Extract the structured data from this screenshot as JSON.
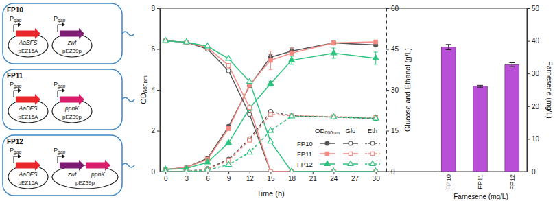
{
  "diagram": {
    "strains": [
      {
        "name": "FP10",
        "plasmids": [
          {
            "name": "pEZ15A",
            "promoter": {
              "text": "P",
              "subscript": "gap"
            },
            "genes": [
              {
                "name": "AaBFS",
                "color": "#e8262b"
              }
            ]
          },
          {
            "name": "pEZ39p",
            "promoter": {
              "text": "P",
              "subscript": "gap"
            },
            "genes": [
              {
                "name": "zwf",
                "color": "#7d1a72"
              }
            ]
          }
        ]
      },
      {
        "name": "FP11",
        "plasmids": [
          {
            "name": "pEZ15A",
            "promoter": {
              "text": "P",
              "subscript": "gap"
            },
            "genes": [
              {
                "name": "AaBFS",
                "color": "#e8262b"
              }
            ]
          },
          {
            "name": "pEZ39p",
            "promoter": {
              "text": "P",
              "subscript": "gap"
            },
            "genes": [
              {
                "name": "ppnK",
                "color": "#d81e6a"
              }
            ]
          }
        ]
      },
      {
        "name": "FP12",
        "plasmids": [
          {
            "name": "pEZ15A",
            "promoter": {
              "text": "P",
              "subscript": "gap"
            },
            "genes": [
              {
                "name": "AaBFS",
                "color": "#e8262b"
              }
            ]
          },
          {
            "name": "pEZ39p",
            "promoter": {
              "text": "P",
              "subscript": "gap"
            },
            "genes": [
              {
                "name": "zwf",
                "color": "#7d1a72"
              },
              {
                "name": "ppnK",
                "color": "#d81e6a"
              }
            ]
          }
        ]
      }
    ]
  },
  "chart_data": [
    {
      "type": "line",
      "xlabel": "Time (h)",
      "ylabel": {
        "text": "OD",
        "subscript": "600nm"
      },
      "y2label": "Glucose and Ethanol (g/L)",
      "x": [
        0,
        3,
        6,
        9,
        12,
        15,
        18,
        24,
        30
      ],
      "xlim": [
        -0.8,
        31.5
      ],
      "xticks": [
        0,
        3,
        6,
        9,
        12,
        15,
        18,
        21,
        24,
        27,
        30
      ],
      "ylim": [
        0,
        8
      ],
      "yticks": [
        0,
        2,
        4,
        6,
        8
      ],
      "y2lim": [
        0,
        60
      ],
      "y2ticks": [
        0,
        15,
        30,
        45,
        60
      ],
      "legend": "lower right",
      "legend_columns": [
        {
          "text": "OD",
          "subscript": "600nm"
        },
        {
          "text": "Glu"
        },
        {
          "text": "Eth"
        }
      ],
      "series": [
        {
          "name": "FP10",
          "measure": "OD",
          "color": "#555555",
          "marker": "circle",
          "line_style": "solid",
          "values": [
            0.1,
            0.2,
            0.65,
            2.2,
            4.2,
            5.6,
            5.9,
            6.3,
            6.2
          ],
          "errors": [
            null,
            null,
            null,
            0.08,
            0.1,
            0.12,
            0.15,
            0.08,
            0.08
          ]
        },
        {
          "name": "FP11",
          "measure": "OD",
          "color": "#f28b82",
          "marker": "square",
          "line_style": "solid",
          "values": [
            0.1,
            0.2,
            0.6,
            2.1,
            4.25,
            5.45,
            5.8,
            6.3,
            6.35
          ],
          "errors": [
            null,
            null,
            null,
            0.1,
            0.15,
            0.45,
            0.25,
            0.1,
            0.08
          ]
        },
        {
          "name": "FP12",
          "measure": "OD",
          "color": "#2bc37f",
          "marker": "triangle",
          "line_style": "solid",
          "values": [
            0.1,
            0.15,
            0.45,
            1.4,
            3.1,
            4.3,
            5.45,
            5.8,
            5.55
          ],
          "errors": [
            null,
            null,
            0.05,
            0.1,
            0.12,
            0.12,
            0.2,
            0.25,
            0.3
          ]
        },
        {
          "name": "FP10",
          "measure": "Glu",
          "axis": "y2",
          "color": "#555555",
          "marker": "open-circle",
          "line_style": "solid",
          "values": [
            48,
            47.5,
            45,
            37,
            21,
            0,
            0,
            0,
            0
          ]
        },
        {
          "name": "FP11",
          "measure": "Glu",
          "axis": "y2",
          "color": "#f28b82",
          "marker": "open-square",
          "line_style": "solid",
          "values": [
            48,
            47.5,
            45.5,
            39,
            23.5,
            0,
            0,
            0,
            0
          ]
        },
        {
          "name": "FP12",
          "measure": "Glu",
          "axis": "y2",
          "color": "#2bc37f",
          "marker": "open-triangle",
          "line_style": "solid",
          "values": [
            48,
            47.5,
            46,
            41.5,
            33,
            11,
            0,
            0,
            0
          ]
        },
        {
          "name": "FP10",
          "measure": "Eth",
          "axis": "y2",
          "color": "#555555",
          "marker": "open-circle",
          "line_style": "dashed",
          "values": [
            0,
            0,
            1,
            4.5,
            12,
            22,
            20.5,
            20,
            19.5
          ]
        },
        {
          "name": "FP11",
          "measure": "Eth",
          "axis": "y2",
          "color": "#f28b82",
          "marker": "open-square",
          "line_style": "dashed",
          "values": [
            0,
            0,
            0.8,
            4,
            11.5,
            21,
            20.5,
            20.2,
            19.8
          ]
        },
        {
          "name": "FP12",
          "measure": "Eth",
          "axis": "y2",
          "color": "#2bc37f",
          "marker": "open-triangle",
          "line_style": "dashed",
          "values": [
            0,
            0,
            0.5,
            2.5,
            7,
            15,
            20.3,
            20,
            19.5
          ]
        }
      ]
    },
    {
      "type": "bar",
      "xlabel": "Farnesene (mg/L)",
      "ylabel": "Farnesene (mg/L)",
      "categories": [
        "FP10",
        "FP11",
        "FP12"
      ],
      "values": [
        38.1,
        26.1,
        32.7
      ],
      "errors": [
        0.8,
        0.3,
        0.6
      ],
      "color": "#b84fd6",
      "ylim": [
        0,
        50
      ],
      "yticks": [
        0,
        10,
        20,
        30,
        40,
        50
      ]
    }
  ]
}
